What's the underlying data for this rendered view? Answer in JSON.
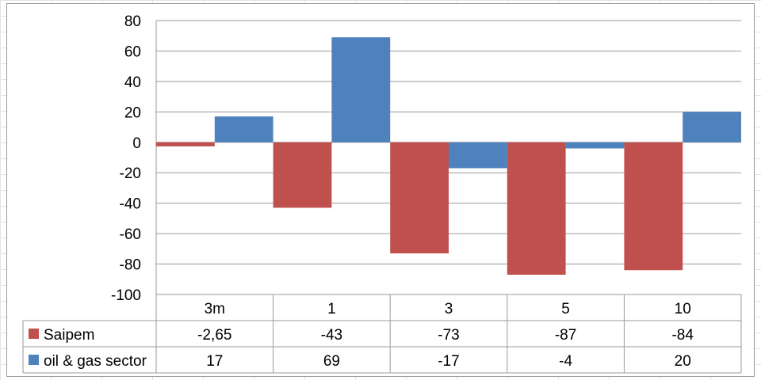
{
  "chart_data": {
    "type": "bar",
    "categories": [
      "3m",
      "1",
      "3",
      "5",
      "10"
    ],
    "series": [
      {
        "name": "Saipem",
        "values": [
          -2.65,
          -43,
          -73,
          -87,
          -84
        ],
        "labels": [
          "-2,65",
          "-43",
          "-73",
          "-87",
          "-84"
        ],
        "color": "#c0504d"
      },
      {
        "name": "oil & gas sector",
        "values": [
          17,
          69,
          -17,
          -4,
          20
        ],
        "labels": [
          "17",
          "69",
          "-17",
          "-4",
          "20"
        ],
        "color": "#4f81bd"
      }
    ],
    "yticks": [
      "80",
      "60",
      "40",
      "20",
      "0",
      "-20",
      "-40",
      "-60",
      "-80",
      "-100"
    ],
    "ylim": [
      -100,
      80
    ],
    "grid": true,
    "legend": "data-table"
  }
}
